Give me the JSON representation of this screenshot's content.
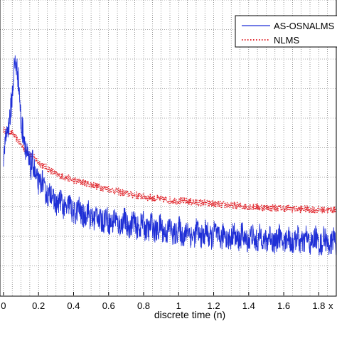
{
  "chart_data": {
    "type": "line",
    "xlabel": "discrete time (n)",
    "x_exponent_label": "x",
    "xlim": [
      -0.02,
      1.9
    ],
    "ylim": [
      0,
      1
    ],
    "x_ticks": [
      "0",
      "0.2",
      "0.4",
      "0.6",
      "0.8",
      "1",
      "1.2",
      "1.4",
      "1.6",
      "1.8"
    ],
    "x_tick_values": [
      0,
      0.2,
      0.4,
      0.6,
      0.8,
      1.0,
      1.2,
      1.4,
      1.6,
      1.8
    ],
    "grid": true,
    "legend_position": "top-right",
    "series": [
      {
        "name": "AS-OSNALMS",
        "color": "#1f2fd6",
        "style": "solid",
        "x": [
          0.0,
          0.02,
          0.04,
          0.06,
          0.07,
          0.08,
          0.09,
          0.1,
          0.12,
          0.15,
          0.2,
          0.25,
          0.3,
          0.4,
          0.5,
          0.6,
          0.7,
          0.8,
          0.9,
          1.0,
          1.2,
          1.4,
          1.6,
          1.8,
          1.9
        ],
        "y": [
          0.46,
          0.54,
          0.62,
          0.74,
          0.76,
          0.76,
          0.7,
          0.58,
          0.5,
          0.44,
          0.38,
          0.34,
          0.31,
          0.28,
          0.26,
          0.245,
          0.235,
          0.225,
          0.215,
          0.205,
          0.195,
          0.185,
          0.18,
          0.175,
          0.17
        ],
        "spread": [
          0.03,
          0.05,
          0.06,
          0.06,
          0.06,
          0.06,
          0.06,
          0.06,
          0.06,
          0.06,
          0.05,
          0.05,
          0.05,
          0.05,
          0.05,
          0.05,
          0.05,
          0.05,
          0.05,
          0.05,
          0.05,
          0.05,
          0.05,
          0.05,
          0.05
        ]
      },
      {
        "name": "NLMS",
        "color": "#e0232a",
        "style": "dotted",
        "x": [
          0.0,
          0.05,
          0.1,
          0.15,
          0.2,
          0.3,
          0.4,
          0.5,
          0.6,
          0.7,
          0.8,
          0.9,
          1.0,
          1.2,
          1.4,
          1.6,
          1.8,
          1.9
        ],
        "y": [
          0.56,
          0.55,
          0.51,
          0.48,
          0.45,
          0.41,
          0.39,
          0.375,
          0.36,
          0.345,
          0.335,
          0.325,
          0.32,
          0.31,
          0.3,
          0.295,
          0.29,
          0.29
        ],
        "spread": [
          0.01,
          0.01,
          0.012,
          0.012,
          0.012,
          0.012,
          0.012,
          0.012,
          0.012,
          0.012,
          0.012,
          0.012,
          0.012,
          0.012,
          0.012,
          0.012,
          0.012,
          0.012
        ]
      }
    ]
  }
}
